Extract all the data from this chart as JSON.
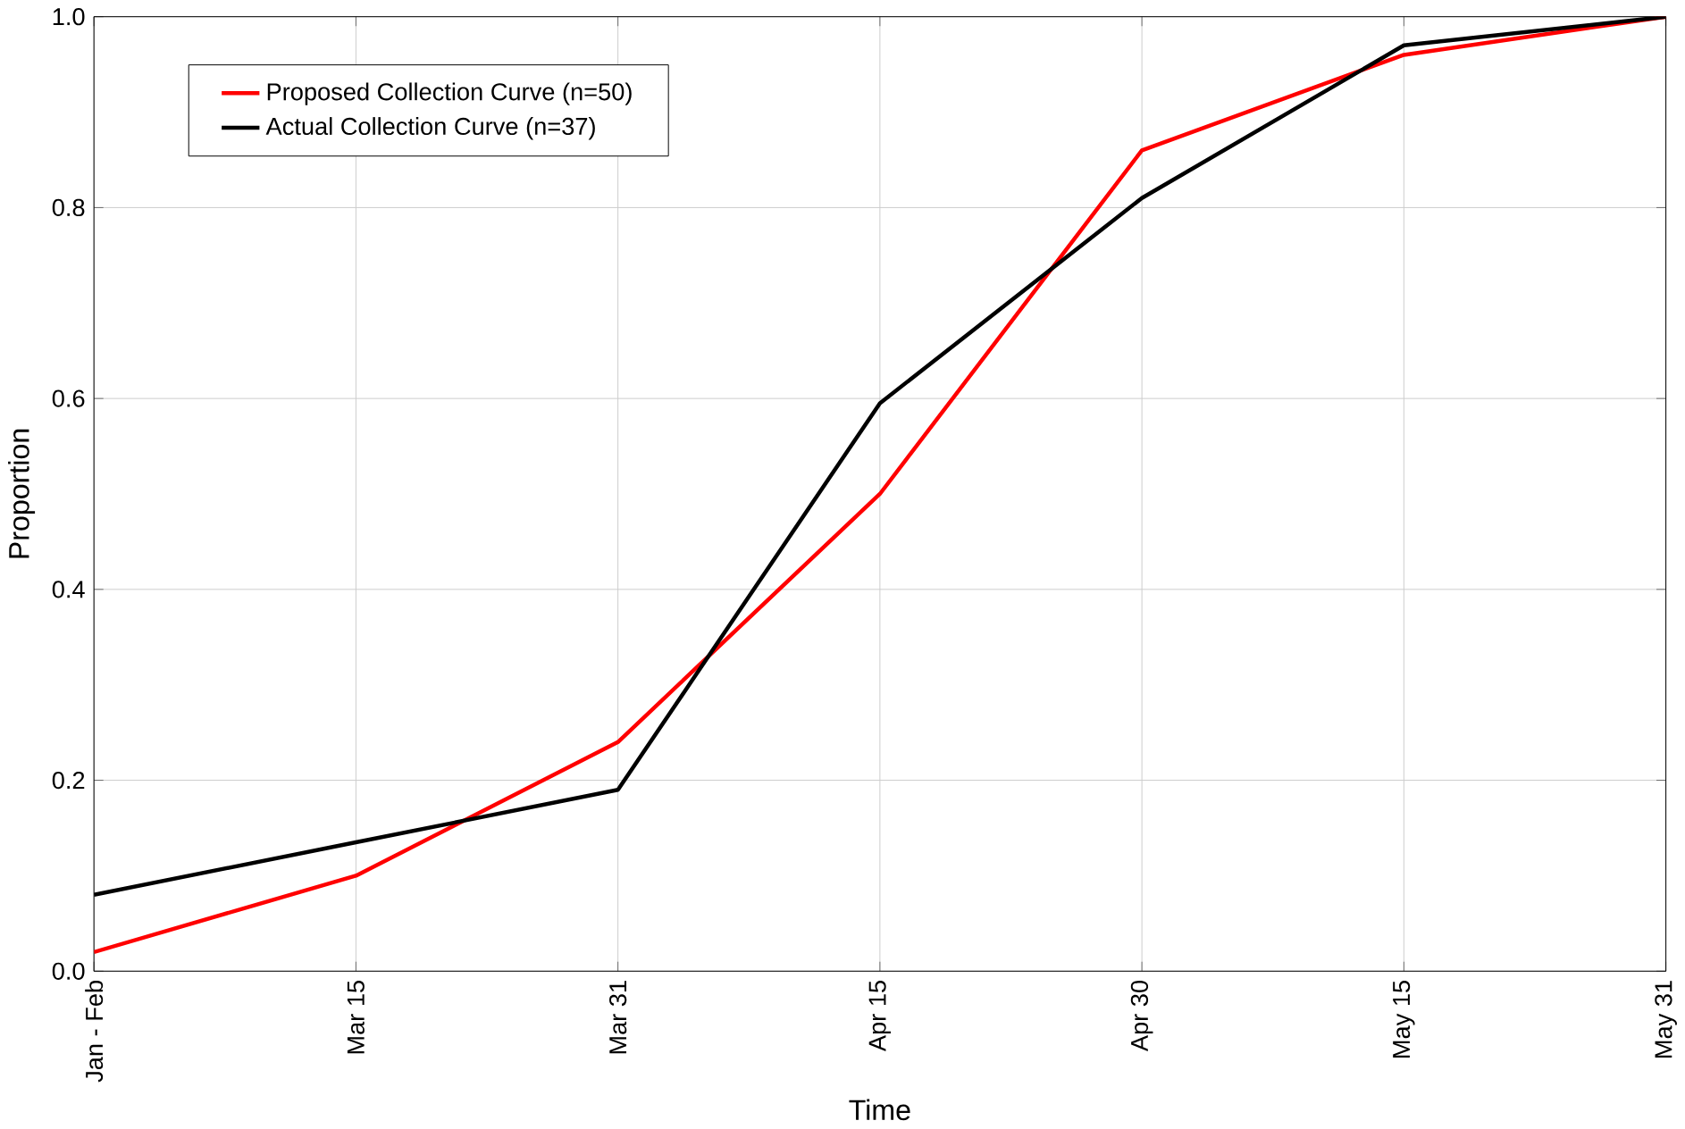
{
  "chart_data": {
    "type": "line",
    "xlabel": "Time",
    "ylabel": "Proportion",
    "categories": [
      "Jan - Feb",
      "Mar 15",
      "Mar 31",
      "Apr 15",
      "Apr 30",
      "May 15",
      "May 31"
    ],
    "series": [
      {
        "name": "Proposed Collection Curve (n=50)",
        "color": "#ff0000",
        "values": [
          0.02,
          0.1,
          0.24,
          0.5,
          0.86,
          0.96,
          1.0
        ]
      },
      {
        "name": "Actual Collection Curve (n=37)",
        "color": "#000000",
        "values": [
          0.08,
          0.135,
          0.19,
          0.595,
          0.81,
          0.97,
          1.0
        ]
      }
    ],
    "ylim": [
      0,
      1
    ],
    "yticks": [
      {
        "value": 0,
        "label": "0.0"
      },
      {
        "value": 0.2,
        "label": "0.2"
      },
      {
        "value": 0.4,
        "label": "0.4"
      },
      {
        "value": 0.6,
        "label": "0.6"
      },
      {
        "value": 0.8,
        "label": "0.8"
      },
      {
        "value": 1,
        "label": "1.0"
      }
    ],
    "grid": true,
    "legend": "top left",
    "marker": "none",
    "line_style": "solid"
  }
}
